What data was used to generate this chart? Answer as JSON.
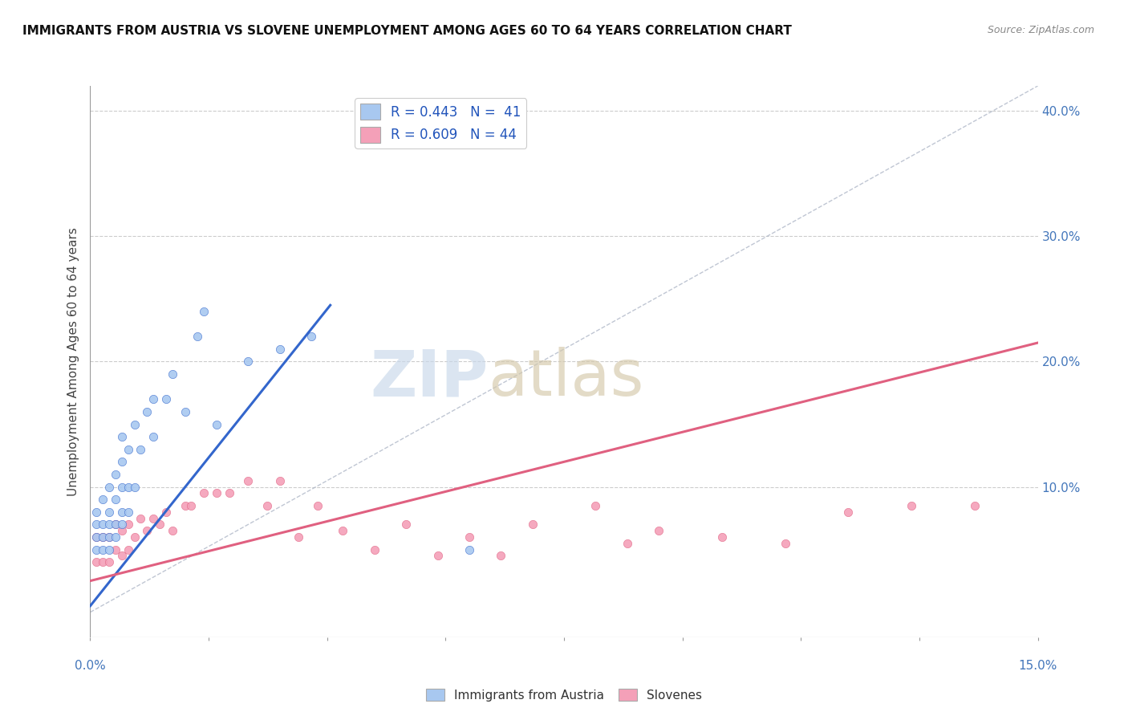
{
  "title": "IMMIGRANTS FROM AUSTRIA VS SLOVENE UNEMPLOYMENT AMONG AGES 60 TO 64 YEARS CORRELATION CHART",
  "source": "Source: ZipAtlas.com",
  "ylabel_label": "Unemployment Among Ages 60 to 64 years",
  "legend1_label": "R = 0.443   N =  41",
  "legend2_label": "R = 0.609   N = 44",
  "color_austria": "#a8c8f0",
  "color_slovene": "#f4a0b8",
  "line_austria": "#3366cc",
  "line_slovene": "#e06080",
  "line_diag": "#b0b8c8",
  "austria_scatter_x": [
    0.001,
    0.001,
    0.001,
    0.001,
    0.002,
    0.002,
    0.002,
    0.002,
    0.003,
    0.003,
    0.003,
    0.003,
    0.003,
    0.004,
    0.004,
    0.004,
    0.004,
    0.005,
    0.005,
    0.005,
    0.005,
    0.005,
    0.006,
    0.006,
    0.006,
    0.007,
    0.007,
    0.008,
    0.009,
    0.01,
    0.01,
    0.012,
    0.013,
    0.015,
    0.017,
    0.018,
    0.02,
    0.025,
    0.03,
    0.035,
    0.06
  ],
  "austria_scatter_y": [
    0.05,
    0.06,
    0.07,
    0.08,
    0.05,
    0.06,
    0.07,
    0.09,
    0.05,
    0.06,
    0.07,
    0.08,
    0.1,
    0.06,
    0.07,
    0.09,
    0.11,
    0.07,
    0.08,
    0.1,
    0.12,
    0.14,
    0.08,
    0.1,
    0.13,
    0.1,
    0.15,
    0.13,
    0.16,
    0.14,
    0.17,
    0.17,
    0.19,
    0.16,
    0.22,
    0.24,
    0.15,
    0.2,
    0.21,
    0.22,
    0.05
  ],
  "austria_line_x": [
    0.0,
    0.038
  ],
  "austria_line_y": [
    0.005,
    0.245
  ],
  "slovene_scatter_x": [
    0.001,
    0.001,
    0.002,
    0.002,
    0.003,
    0.003,
    0.004,
    0.004,
    0.005,
    0.005,
    0.006,
    0.006,
    0.007,
    0.008,
    0.009,
    0.01,
    0.011,
    0.012,
    0.013,
    0.015,
    0.016,
    0.018,
    0.02,
    0.022,
    0.025,
    0.028,
    0.03,
    0.033,
    0.036,
    0.04,
    0.045,
    0.05,
    0.055,
    0.06,
    0.065,
    0.07,
    0.08,
    0.085,
    0.09,
    0.1,
    0.11,
    0.12,
    0.13,
    0.14
  ],
  "slovene_scatter_y": [
    0.04,
    0.06,
    0.04,
    0.06,
    0.04,
    0.06,
    0.05,
    0.07,
    0.045,
    0.065,
    0.05,
    0.07,
    0.06,
    0.075,
    0.065,
    0.075,
    0.07,
    0.08,
    0.065,
    0.085,
    0.085,
    0.095,
    0.095,
    0.095,
    0.105,
    0.085,
    0.105,
    0.06,
    0.085,
    0.065,
    0.05,
    0.07,
    0.045,
    0.06,
    0.045,
    0.07,
    0.085,
    0.055,
    0.065,
    0.06,
    0.055,
    0.08,
    0.085,
    0.085
  ],
  "slovene_line_x": [
    0.0,
    0.15
  ],
  "slovene_line_y": [
    0.025,
    0.215
  ],
  "diag_line_x": [
    0.0,
    0.15
  ],
  "diag_line_y": [
    0.0,
    0.42
  ],
  "xlim": [
    0.0,
    0.15
  ],
  "ylim": [
    -0.02,
    0.42
  ],
  "right_yticks": [
    0.0,
    0.1,
    0.2,
    0.3,
    0.4
  ],
  "right_yticklabels": [
    "",
    "10.0%",
    "20.0%",
    "30.0%",
    "40.0%"
  ]
}
